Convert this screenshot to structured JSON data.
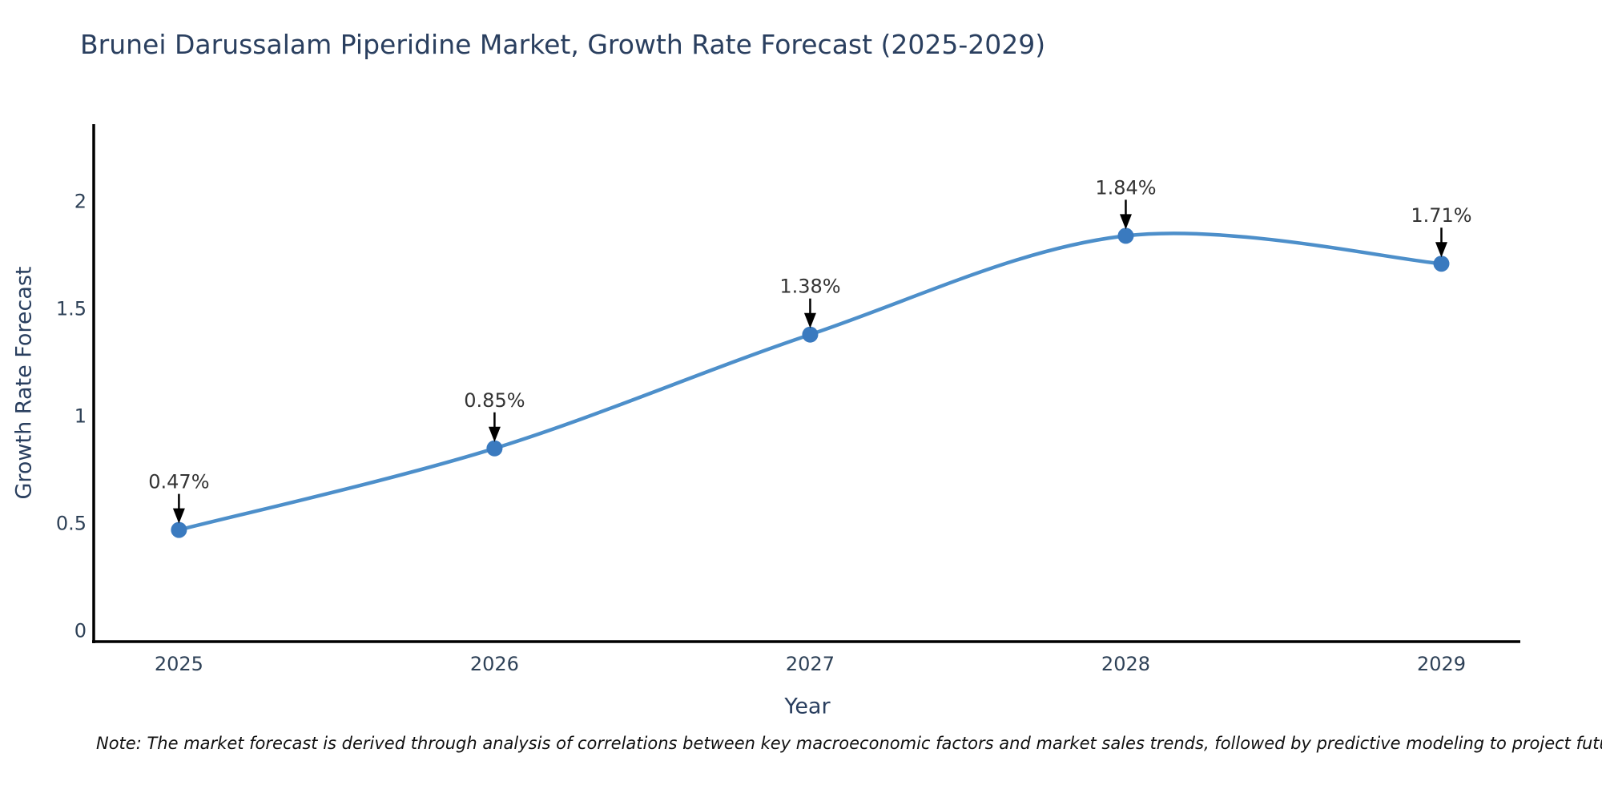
{
  "note": "Note: The market forecast is derived through analysis of correlations between key macroeconomic factors and market sales trends, followed by predictive modeling to project future sales",
  "chart_data": {
    "type": "line",
    "title": "Brunei Darussalam Piperidine Market, Growth Rate Forecast (2025-2029)",
    "xlabel": "Year",
    "ylabel": "Growth Rate Forecast",
    "x": [
      2025,
      2026,
      2027,
      2028,
      2029
    ],
    "y": [
      0.47,
      0.85,
      1.38,
      1.84,
      1.71
    ],
    "point_labels": [
      "0.47%",
      "0.85%",
      "1.38%",
      "1.84%",
      "1.71%"
    ],
    "x_tick_labels": [
      "2025",
      "2026",
      "2027",
      "2028",
      "2029"
    ],
    "y_ticks": [
      0,
      0.5,
      1,
      1.5,
      2
    ],
    "y_tick_labels": [
      "0",
      "0.5",
      "1",
      "1.5",
      "2"
    ],
    "xlim": [
      2024.73,
      2029.25
    ],
    "ylim": [
      -0.05,
      2.36
    ],
    "grid": false,
    "legend": false,
    "line_shape": "spline",
    "colors": {
      "line": "#4d8fca",
      "marker": "#3a7abf",
      "axis": "#000000",
      "annotation_arrow": "#000000",
      "annotation_text": "#333333",
      "title_text": "#2a3f5f",
      "tick_text": "#2e4157",
      "note_text": "#111111",
      "background": "#ffffff"
    }
  }
}
